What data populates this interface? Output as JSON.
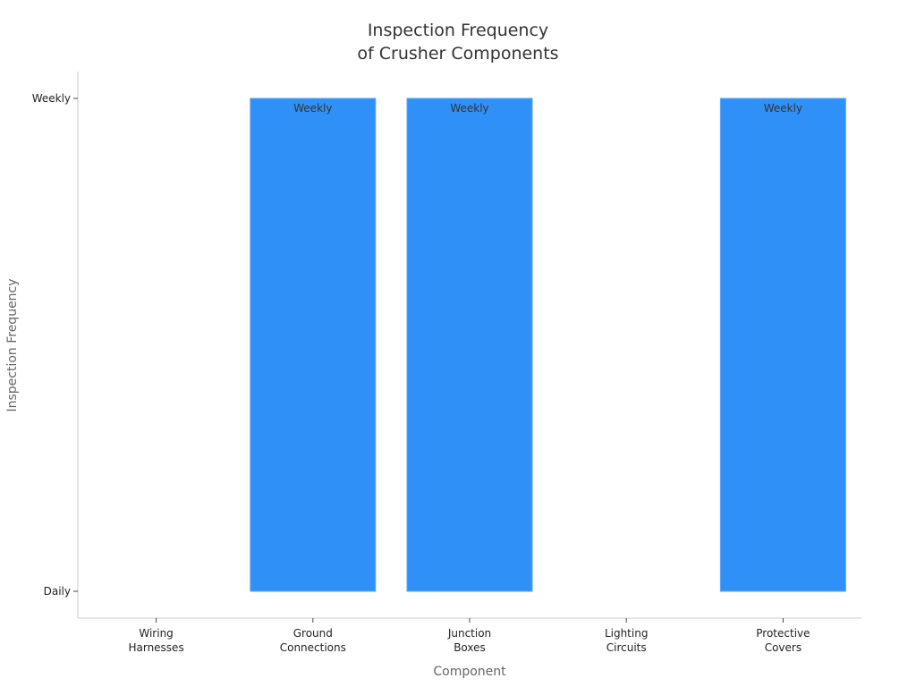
{
  "chart_data": {
    "type": "bar",
    "title_lines": [
      "Inspection Frequency",
      "of Crusher Components"
    ],
    "xlabel": "Component",
    "ylabel": "Inspection Frequency",
    "y_categories": [
      "Daily",
      "Weekly"
    ],
    "categories": [
      [
        "Wiring",
        "Harnesses"
      ],
      [
        "Ground",
        "Connections"
      ],
      [
        "Junction",
        "Boxes"
      ],
      [
        "Lighting",
        "Circuits"
      ],
      [
        "Protective",
        "Covers"
      ]
    ],
    "values": [
      "Daily",
      "Weekly",
      "Weekly",
      "Daily",
      "Weekly"
    ],
    "data_labels": [
      "",
      "Weekly",
      "Weekly",
      "",
      "Weekly"
    ],
    "grid": false,
    "legend": "none"
  },
  "colors": {
    "bar": "#2f91f7",
    "axis": "#cccccc"
  }
}
